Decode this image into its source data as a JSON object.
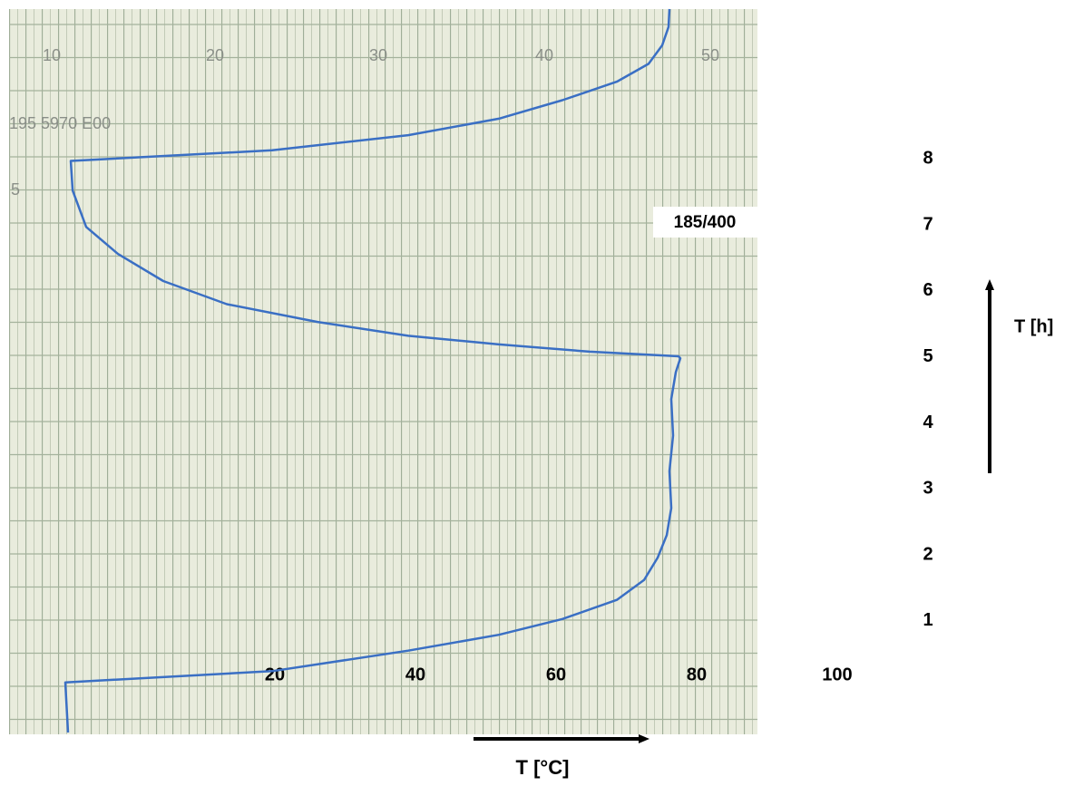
{
  "chart_data": {
    "type": "line",
    "xlabel": "T [°C]",
    "ylabel": "T [h]",
    "xlim": [
      -17.81,
      88.65
    ],
    "ylim": [
      -0.69,
      10.27
    ],
    "xticks": [
      20,
      40,
      60,
      80,
      100
    ],
    "yticks": [
      1,
      2,
      3,
      4,
      5,
      6,
      7,
      8
    ],
    "paper_scale": [
      "10",
      "20",
      "30",
      "40",
      "50"
    ],
    "annotations": [
      "195 5970 E00",
      "5",
      "185/400"
    ],
    "series": [
      {
        "color": "#3a6fc4",
        "x": [
          -9.42,
          -9.81,
          19.61,
          38.97,
          51.87,
          60.9,
          68.65,
          72.52,
          74.45,
          75.74,
          76.39,
          76.13,
          76.65,
          76.39,
          77.03,
          77.68,
          77.42,
          64.77,
          51.87,
          38.97,
          26.06,
          13.16,
          4.13,
          -2.32,
          -6.84,
          -8.77,
          -9.03,
          19.61,
          38.97,
          51.87,
          60.9,
          68.65,
          73.16,
          75.1,
          76.0,
          76.13
        ],
        "values": [
          -0.69,
          0.07,
          0.24,
          0.55,
          0.79,
          1.03,
          1.32,
          1.62,
          1.96,
          2.3,
          2.71,
          3.27,
          3.81,
          4.36,
          4.77,
          4.98,
          5.01,
          5.08,
          5.19,
          5.32,
          5.53,
          5.8,
          6.15,
          6.56,
          6.97,
          7.52,
          7.97,
          8.13,
          8.36,
          8.61,
          8.89,
          9.17,
          9.44,
          9.72,
          10.0,
          10.27
        ]
      }
    ]
  }
}
